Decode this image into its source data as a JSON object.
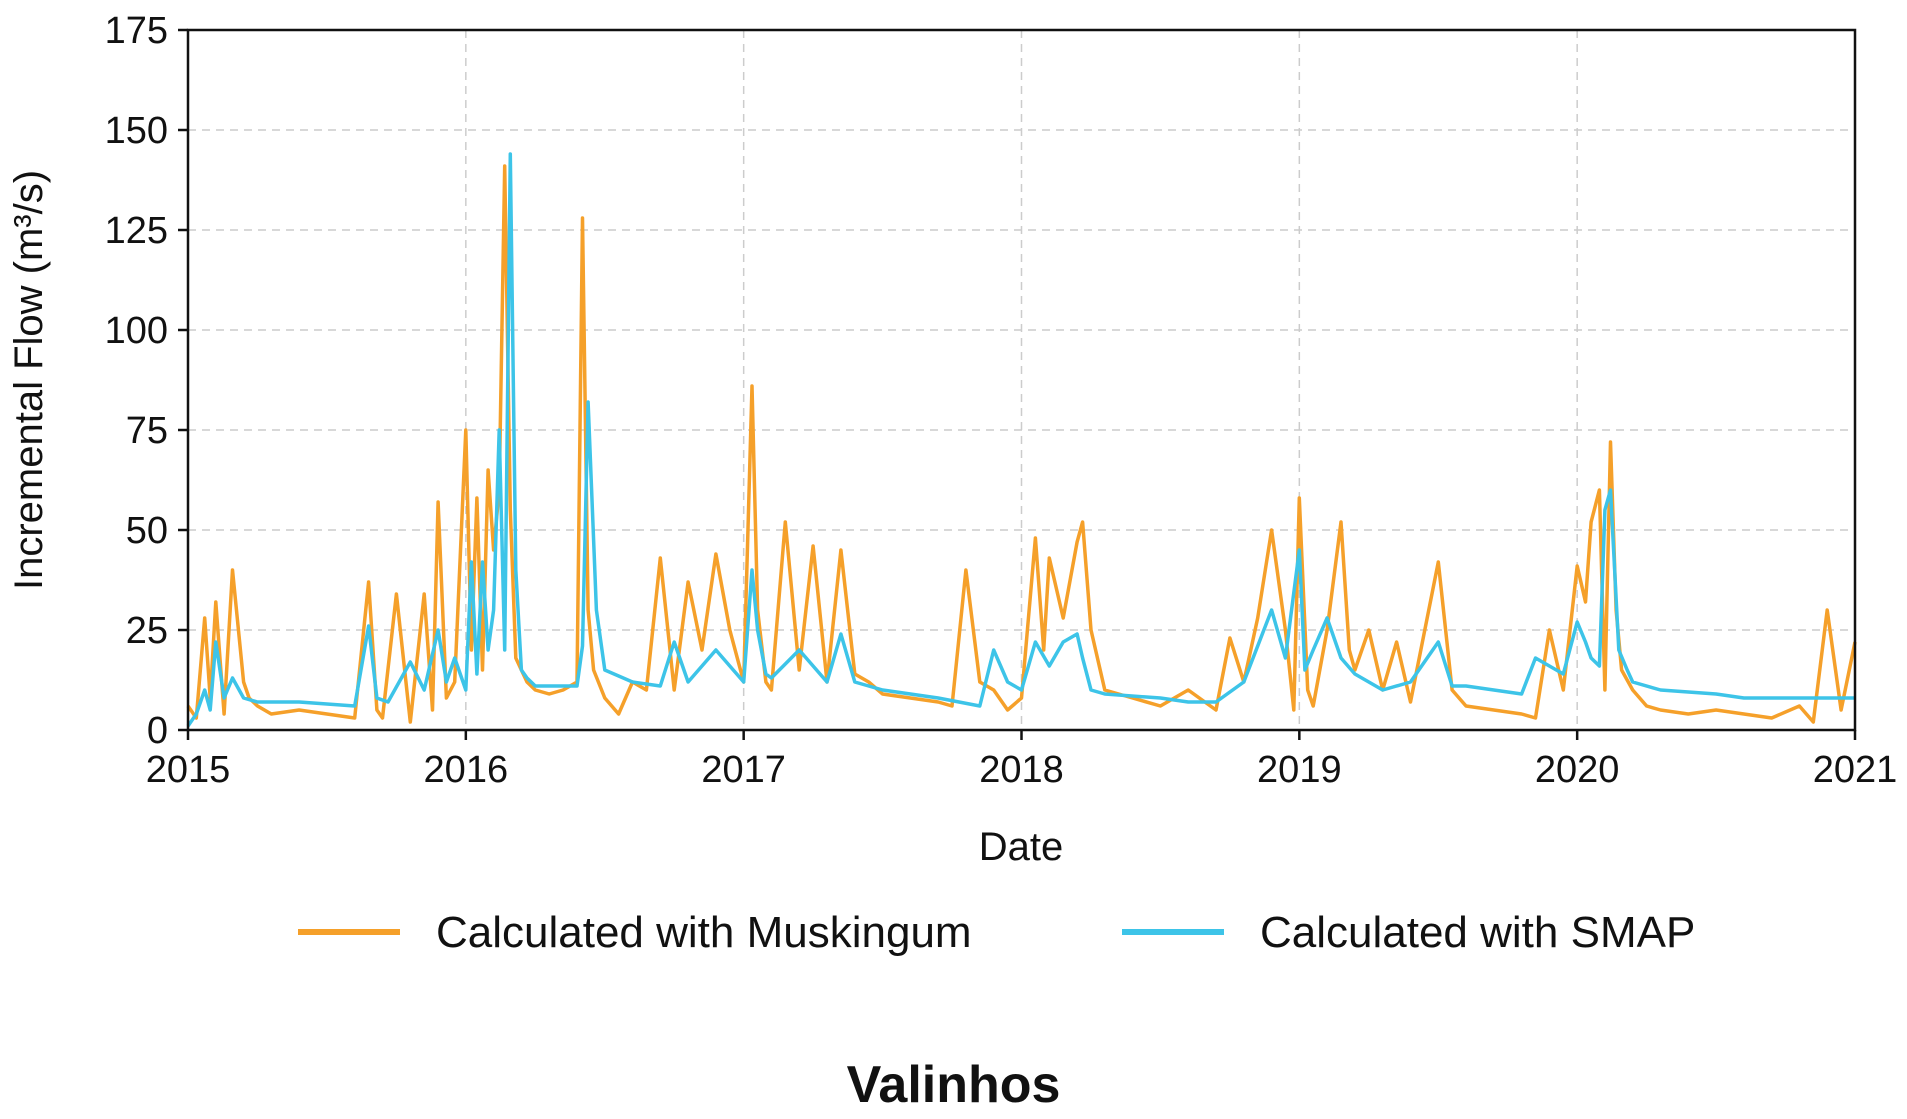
{
  "caption": "Valinhos",
  "chart_data": {
    "type": "line",
    "xlabel": "Date",
    "ylabel": "Incremental Flow (m³/s)",
    "xlim": [
      2015,
      2021
    ],
    "ylim": [
      0,
      175
    ],
    "xticks": [
      "2015",
      "2016",
      "2017",
      "2018",
      "2019",
      "2020",
      "2021"
    ],
    "yticks": [
      "0",
      "25",
      "50",
      "75",
      "100",
      "125",
      "150",
      "175"
    ],
    "grid": true,
    "legend_position": "bottom-center",
    "series": [
      {
        "name": "Calculated with Muskingum",
        "color": "#F5A02A",
        "x": [
          2015.0,
          2015.03,
          2015.06,
          2015.08,
          2015.1,
          2015.13,
          2015.16,
          2015.2,
          2015.22,
          2015.25,
          2015.3,
          2015.4,
          2015.5,
          2015.6,
          2015.65,
          2015.68,
          2015.7,
          2015.75,
          2015.8,
          2015.85,
          2015.88,
          2015.9,
          2015.93,
          2015.96,
          2016.0,
          2016.02,
          2016.04,
          2016.06,
          2016.08,
          2016.1,
          2016.12,
          2016.14,
          2016.16,
          2016.18,
          2016.2,
          2016.22,
          2016.25,
          2016.3,
          2016.35,
          2016.4,
          2016.42,
          2016.44,
          2016.46,
          2016.5,
          2016.55,
          2016.6,
          2016.65,
          2016.7,
          2016.75,
          2016.8,
          2016.85,
          2016.9,
          2016.95,
          2017.0,
          2017.03,
          2017.05,
          2017.08,
          2017.1,
          2017.15,
          2017.2,
          2017.25,
          2017.3,
          2017.35,
          2017.4,
          2017.45,
          2017.5,
          2017.6,
          2017.7,
          2017.75,
          2017.8,
          2017.85,
          2017.9,
          2017.95,
          2018.0,
          2018.05,
          2018.08,
          2018.1,
          2018.15,
          2018.2,
          2018.22,
          2018.25,
          2018.3,
          2018.4,
          2018.5,
          2018.6,
          2018.7,
          2018.75,
          2018.8,
          2018.85,
          2018.9,
          2018.95,
          2018.98,
          2019.0,
          2019.03,
          2019.05,
          2019.1,
          2019.15,
          2019.18,
          2019.2,
          2019.25,
          2019.3,
          2019.35,
          2019.4,
          2019.5,
          2019.55,
          2019.6,
          2019.7,
          2019.8,
          2019.85,
          2019.9,
          2019.95,
          2020.0,
          2020.03,
          2020.05,
          2020.08,
          2020.1,
          2020.12,
          2020.14,
          2020.16,
          2020.2,
          2020.25,
          2020.3,
          2020.4,
          2020.5,
          2020.6,
          2020.7,
          2020.8,
          2020.85,
          2020.9,
          2020.95,
          2021.0
        ],
        "values": [
          6,
          3,
          28,
          8,
          32,
          4,
          40,
          12,
          8,
          6,
          4,
          5,
          4,
          3,
          37,
          5,
          3,
          34,
          2,
          34,
          5,
          57,
          8,
          12,
          75,
          20,
          58,
          15,
          65,
          45,
          60,
          141,
          55,
          18,
          15,
          12,
          10,
          9,
          10,
          12,
          128,
          30,
          15,
          8,
          4,
          12,
          10,
          43,
          10,
          37,
          20,
          44,
          25,
          12,
          86,
          30,
          12,
          10,
          52,
          15,
          46,
          12,
          45,
          14,
          12,
          9,
          8,
          7,
          6,
          40,
          12,
          10,
          5,
          8,
          48,
          20,
          43,
          28,
          47,
          52,
          25,
          10,
          8,
          6,
          10,
          5,
          23,
          12,
          28,
          50,
          25,
          5,
          58,
          10,
          6,
          25,
          52,
          20,
          15,
          25,
          10,
          22,
          7,
          42,
          10,
          6,
          5,
          4,
          3,
          25,
          10,
          41,
          32,
          52,
          60,
          10,
          72,
          30,
          15,
          10,
          6,
          5,
          4,
          5,
          4,
          3,
          6,
          2,
          30,
          5,
          22
        ]
      },
      {
        "name": "Calculated with SMAP",
        "color": "#3DC4E8",
        "x": [
          2015.0,
          2015.03,
          2015.06,
          2015.08,
          2015.1,
          2015.13,
          2015.16,
          2015.2,
          2015.25,
          2015.4,
          2015.6,
          2015.65,
          2015.68,
          2015.72,
          2015.8,
          2015.85,
          2015.9,
          2015.93,
          2015.96,
          2016.0,
          2016.02,
          2016.04,
          2016.06,
          2016.08,
          2016.1,
          2016.12,
          2016.14,
          2016.16,
          2016.18,
          2016.2,
          2016.22,
          2016.25,
          2016.3,
          2016.35,
          2016.4,
          2016.42,
          2016.44,
          2016.47,
          2016.5,
          2016.6,
          2016.7,
          2016.75,
          2016.8,
          2016.9,
          2017.0,
          2017.03,
          2017.05,
          2017.08,
          2017.1,
          2017.2,
          2017.3,
          2017.35,
          2017.4,
          2017.5,
          2017.7,
          2017.85,
          2017.9,
          2017.95,
          2018.0,
          2018.05,
          2018.1,
          2018.15,
          2018.2,
          2018.22,
          2018.25,
          2018.3,
          2018.5,
          2018.6,
          2018.7,
          2018.8,
          2018.9,
          2018.95,
          2019.0,
          2019.02,
          2019.05,
          2019.1,
          2019.15,
          2019.2,
          2019.3,
          2019.4,
          2019.5,
          2019.55,
          2019.6,
          2019.7,
          2019.8,
          2019.85,
          2019.9,
          2019.95,
          2020.0,
          2020.03,
          2020.05,
          2020.08,
          2020.1,
          2020.12,
          2020.15,
          2020.18,
          2020.2,
          2020.3,
          2020.5,
          2020.6,
          2020.7,
          2020.8,
          2020.9,
          2021.0
        ],
        "values": [
          1,
          4,
          10,
          5,
          22,
          8,
          13,
          8,
          7,
          7,
          6,
          26,
          8,
          7,
          17,
          10,
          25,
          12,
          18,
          10,
          42,
          14,
          42,
          20,
          30,
          75,
          20,
          144,
          40,
          15,
          13,
          11,
          11,
          11,
          11,
          21,
          82,
          30,
          15,
          12,
          11,
          22,
          12,
          20,
          12,
          40,
          25,
          14,
          13,
          20,
          12,
          24,
          12,
          10,
          8,
          6,
          20,
          12,
          10,
          22,
          16,
          22,
          24,
          18,
          10,
          9,
          8,
          7,
          7,
          12,
          30,
          18,
          45,
          15,
          20,
          28,
          18,
          14,
          10,
          12,
          22,
          11,
          11,
          10,
          9,
          18,
          16,
          14,
          27,
          22,
          18,
          16,
          55,
          60,
          20,
          15,
          12,
          10,
          9,
          8,
          8,
          8,
          8,
          8
        ]
      }
    ]
  }
}
